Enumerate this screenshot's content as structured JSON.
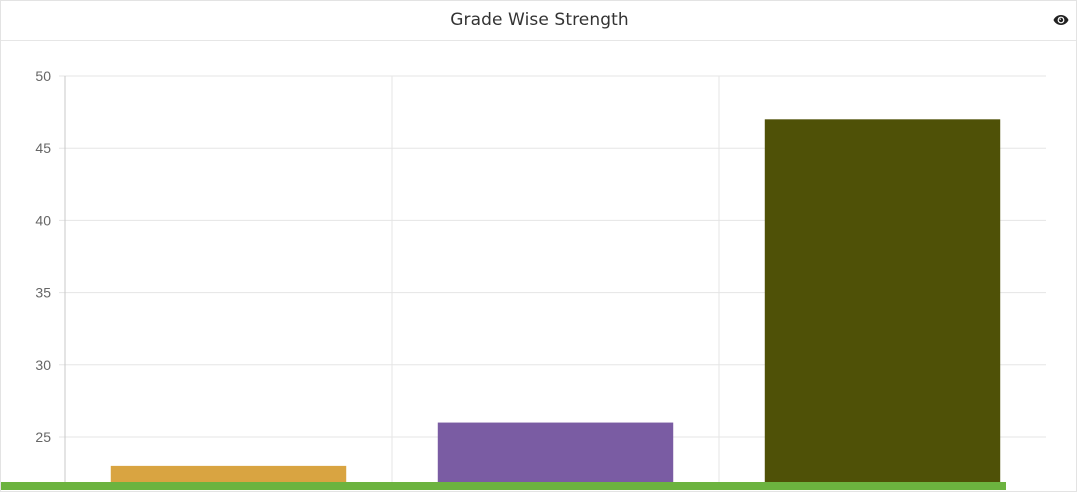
{
  "panel": {
    "title": "Grade Wise Strength",
    "view_icon": "eye-icon"
  },
  "colors": {
    "grid": "#e5e5e5",
    "axis": "#c8c8c8",
    "tick_text": "#666666",
    "strip": "#6cb33f"
  },
  "chart_data": {
    "type": "bar",
    "categories": [
      "",
      "",
      ""
    ],
    "values": [
      23,
      26,
      47
    ],
    "colors": [
      "#d9a441",
      "#7a5ca3",
      "#4f5107"
    ],
    "title": "Grade Wise Strength",
    "xlabel": "",
    "ylabel": "",
    "ylim": [
      21.5,
      50
    ],
    "yticks": [
      25,
      30,
      35,
      40,
      45,
      50
    ],
    "grid": true,
    "legend": "none"
  }
}
